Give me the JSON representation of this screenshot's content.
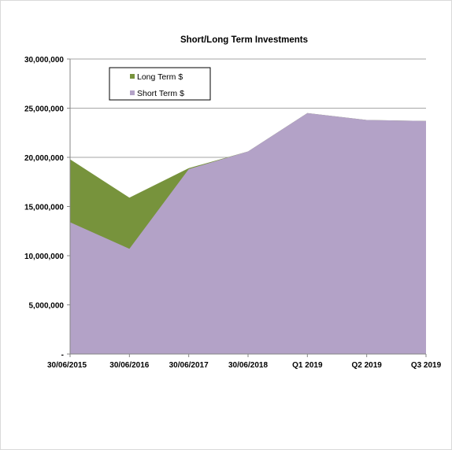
{
  "chart_data": {
    "type": "area",
    "stacked": false,
    "title": "Short/Long Term Investments",
    "xlabel": "",
    "ylabel": "",
    "categories": [
      "30/06/2015",
      "30/06/2016",
      "30/06/2017",
      "30/06/2018",
      "Q1 2019",
      "Q2 2019",
      "Q3 2019"
    ],
    "ylim": [
      0,
      30000000
    ],
    "yticks": [
      0,
      5000000,
      10000000,
      15000000,
      20000000,
      25000000,
      30000000
    ],
    "ytick_labels": [
      "-",
      "5,000,000",
      "10,000,000",
      "15,000,000",
      "20,000,000",
      "25,000,000",
      "30,000,000"
    ],
    "grid": "horizontal",
    "legend_position": "top-left",
    "series": [
      {
        "name": "Long Term $",
        "color": "#77933c",
        "values": [
          19800000,
          15900000,
          18900000,
          20600000,
          24500000,
          23800000,
          23700000
        ]
      },
      {
        "name": "Short Term $",
        "color": "#b3a2c7",
        "values": [
          13400000,
          10700000,
          18800000,
          20600000,
          24500000,
          23800000,
          23700000
        ]
      }
    ]
  }
}
